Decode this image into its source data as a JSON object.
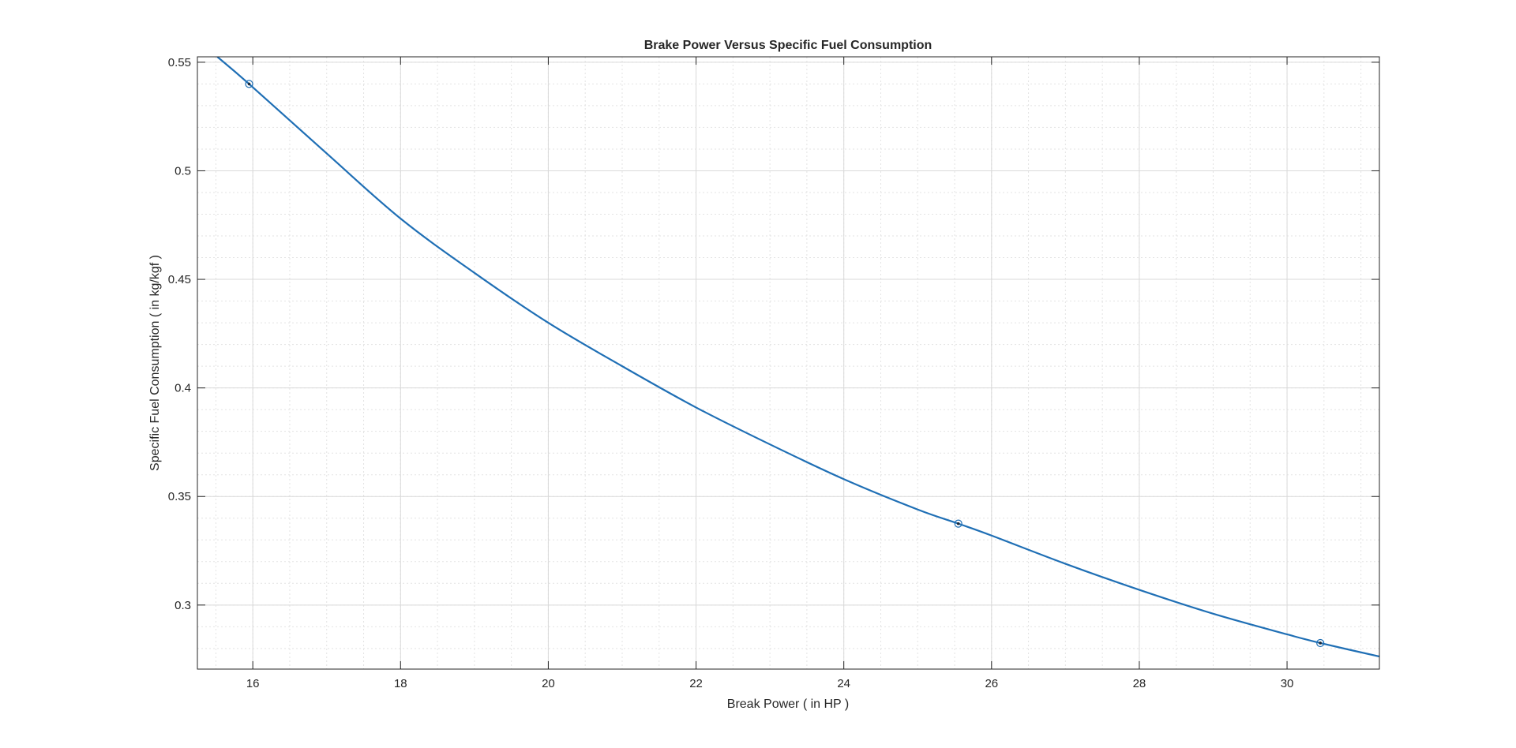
{
  "chart_data": {
    "type": "line",
    "title": "Brake Power Versus Specific Fuel Consumption",
    "xlabel": "Break Power ( in HP )",
    "ylabel": "Specific Fuel Consumption ( in kg/kgf )",
    "xlim": [
      15.25,
      31.25
    ],
    "ylim": [
      0.2705,
      0.5525
    ],
    "xticks": [
      16,
      18,
      20,
      22,
      24,
      26,
      28,
      30
    ],
    "yticks": [
      0.3,
      0.35,
      0.4,
      0.45,
      0.5,
      0.55
    ],
    "grid": true,
    "minor_grid": true,
    "series": [
      {
        "color": "#1f6fb5",
        "markers": [
          {
            "x": 15.95,
            "y": 0.54
          },
          {
            "x": 25.55,
            "y": 0.3375
          },
          {
            "x": 30.45,
            "y": 0.2825
          }
        ],
        "curve": [
          {
            "x": 15.52,
            "y": 0.5525
          },
          {
            "x": 15.95,
            "y": 0.54
          },
          {
            "x": 17.0,
            "y": 0.508
          },
          {
            "x": 18.0,
            "y": 0.478
          },
          {
            "x": 19.0,
            "y": 0.453
          },
          {
            "x": 20.0,
            "y": 0.43
          },
          {
            "x": 21.0,
            "y": 0.41
          },
          {
            "x": 22.0,
            "y": 0.391
          },
          {
            "x": 23.0,
            "y": 0.374
          },
          {
            "x": 24.0,
            "y": 0.358
          },
          {
            "x": 25.0,
            "y": 0.344
          },
          {
            "x": 25.55,
            "y": 0.3375
          },
          {
            "x": 26.0,
            "y": 0.332
          },
          {
            "x": 27.0,
            "y": 0.319
          },
          {
            "x": 28.0,
            "y": 0.307
          },
          {
            "x": 29.0,
            "y": 0.296
          },
          {
            "x": 30.0,
            "y": 0.2865
          },
          {
            "x": 30.45,
            "y": 0.2825
          },
          {
            "x": 31.25,
            "y": 0.2763
          }
        ]
      }
    ]
  }
}
